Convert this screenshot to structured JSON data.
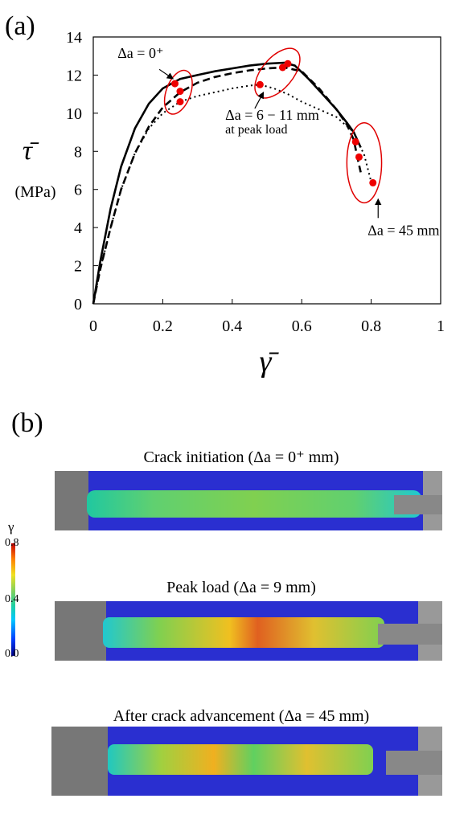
{
  "panel_a_label": "(a)",
  "panel_b_label": "(b)",
  "chart_data": {
    "type": "line",
    "title": "",
    "xlabel": "γ̄",
    "ylabel": "τ̄",
    "ylabel_unit": "(MPa)",
    "xlim": [
      0,
      1
    ],
    "ylim": [
      0,
      14
    ],
    "x_ticks": [
      0,
      0.2,
      0.4,
      0.6,
      0.8,
      1
    ],
    "x_tick_labels": [
      "0",
      "0.2",
      "0.4",
      "0.6",
      "0.8",
      "1"
    ],
    "y_ticks": [
      0,
      2,
      4,
      6,
      8,
      10,
      12,
      14
    ],
    "y_tick_labels": [
      "0",
      "2",
      "4",
      "6",
      "8",
      "10",
      "12",
      "14"
    ],
    "grid": false,
    "series": [
      {
        "style": "solid",
        "color": "#000000",
        "x": [
          0,
          0.02,
          0.05,
          0.08,
          0.12,
          0.16,
          0.2,
          0.25,
          0.3,
          0.35,
          0.4,
          0.45,
          0.5,
          0.55,
          0.58,
          0.62,
          0.66,
          0.7,
          0.73,
          0.75,
          0.77
        ],
        "y": [
          0,
          2.2,
          5.0,
          7.2,
          9.2,
          10.5,
          11.3,
          11.8,
          12.0,
          12.2,
          12.35,
          12.5,
          12.6,
          12.65,
          12.5,
          11.8,
          11.0,
          10.2,
          9.5,
          9.0,
          8.2
        ]
      },
      {
        "style": "dashed",
        "color": "#000000",
        "x": [
          0,
          0.02,
          0.05,
          0.08,
          0.12,
          0.16,
          0.2,
          0.25,
          0.3,
          0.35,
          0.4,
          0.45,
          0.5,
          0.55,
          0.6,
          0.65,
          0.7,
          0.73,
          0.75,
          0.76,
          0.77
        ],
        "y": [
          0,
          1.8,
          4.0,
          6.0,
          7.9,
          9.3,
          10.3,
          11.1,
          11.6,
          11.9,
          12.1,
          12.25,
          12.35,
          12.4,
          12.2,
          11.3,
          10.2,
          9.4,
          8.6,
          7.7,
          6.9
        ]
      },
      {
        "style": "dotted",
        "color": "#000000",
        "x": [
          0,
          0.02,
          0.05,
          0.08,
          0.12,
          0.16,
          0.2,
          0.25,
          0.3,
          0.35,
          0.4,
          0.45,
          0.48,
          0.52,
          0.56,
          0.6,
          0.65,
          0.7,
          0.75,
          0.78,
          0.8
        ],
        "y": [
          0,
          1.8,
          4.0,
          6.0,
          7.9,
          9.2,
          10.0,
          10.6,
          10.9,
          11.1,
          11.3,
          11.45,
          11.5,
          11.3,
          11.0,
          10.6,
          10.2,
          9.8,
          9.0,
          7.8,
          6.4
        ]
      }
    ],
    "markers": [
      {
        "x": 0.235,
        "y": 11.55
      },
      {
        "x": 0.25,
        "y": 11.15
      },
      {
        "x": 0.25,
        "y": 10.6
      },
      {
        "x": 0.48,
        "y": 11.5
      },
      {
        "x": 0.545,
        "y": 12.4
      },
      {
        "x": 0.56,
        "y": 12.6
      },
      {
        "x": 0.755,
        "y": 8.5
      },
      {
        "x": 0.765,
        "y": 7.7
      },
      {
        "x": 0.805,
        "y": 6.35
      }
    ],
    "marker_color": "#ee0000",
    "ellipses": [
      {
        "cx": 0.245,
        "cy": 11.1,
        "rx": 0.035,
        "ry": 1.2,
        "rotate": 20
      },
      {
        "cx": 0.53,
        "cy": 12.1,
        "rx": 0.045,
        "ry": 1.55,
        "rotate": 40
      },
      {
        "cx": 0.78,
        "cy": 7.4,
        "rx": 0.05,
        "ry": 2.1,
        "rotate": 0
      }
    ],
    "annotations": [
      {
        "text": "Δa = 0⁺",
        "x": 0.07,
        "y": 12.9,
        "arrow_from": [
          0.19,
          12.3
        ],
        "arrow_to": [
          0.23,
          11.8
        ]
      },
      {
        "text": "Δa = 6 − 11 mm",
        "x": 0.38,
        "y": 9.65,
        "arrow_from": [
          0.465,
          10.25
        ],
        "arrow_to": [
          0.49,
          11.1
        ]
      },
      {
        "text": "at peak load",
        "x": 0.38,
        "y": 8.95
      },
      {
        "text": "Δa = 45 mm",
        "x": 0.79,
        "y": 3.6,
        "arrow_from": [
          0.82,
          4.5
        ],
        "arrow_to": [
          0.82,
          5.5
        ]
      }
    ]
  },
  "colorbar": {
    "label": "γ",
    "ticks": [
      "0.8",
      "0.4",
      "0.0"
    ]
  },
  "dic_images": [
    {
      "title": "Crack initiation (Δa = 0⁺ mm)"
    },
    {
      "title": "Peak load (Δa = 9 mm)"
    },
    {
      "title": "After crack advancement (Δa = 45 mm)"
    }
  ]
}
